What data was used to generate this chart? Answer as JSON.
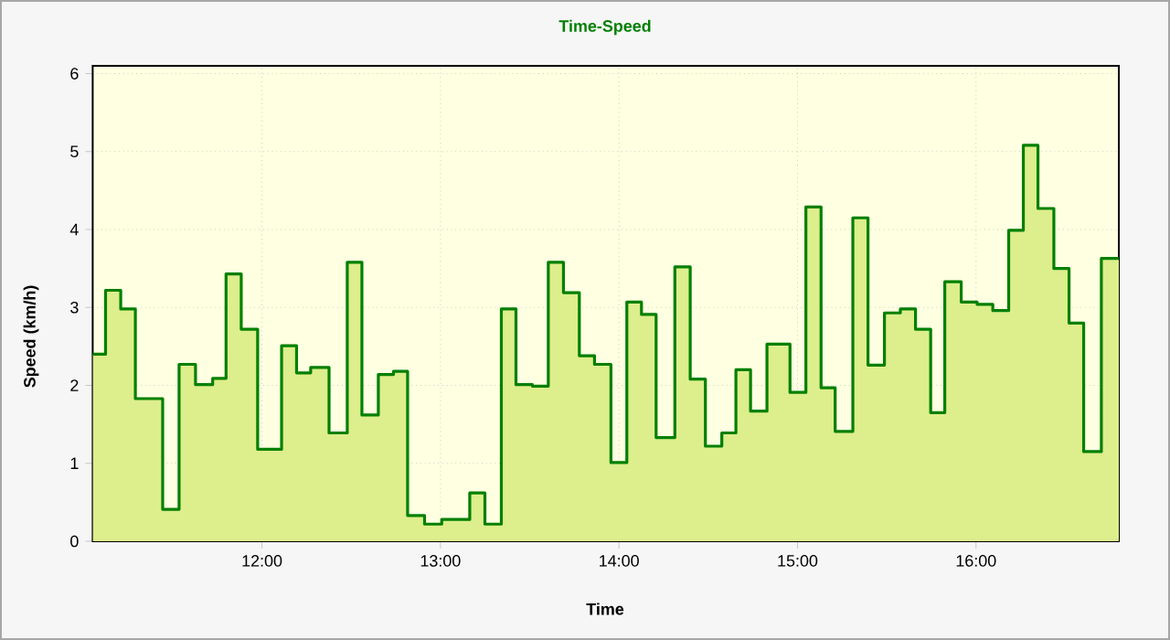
{
  "chart_data": {
    "type": "step",
    "title": "Time-Speed",
    "xlabel": "Time",
    "ylabel": "Speed (km/h)",
    "xlim": [
      11.052,
      16.8
    ],
    "ylim": [
      0,
      6.1
    ],
    "xticks": [
      {
        "value": 12,
        "label": "12:00"
      },
      {
        "value": 13,
        "label": "13:00"
      },
      {
        "value": 14,
        "label": "14:00"
      },
      {
        "value": 15,
        "label": "15:00"
      },
      {
        "value": 16,
        "label": "16:00"
      }
    ],
    "yticks": [
      0,
      1,
      2,
      3,
      4,
      5,
      6
    ],
    "grid": true,
    "legend": false,
    "marker": "none",
    "line_style": "solid",
    "series": [
      {
        "type": "area",
        "color": "#ddee8c",
        "x": [
          11.052,
          11.124,
          11.209,
          11.291,
          11.444,
          11.536,
          11.628,
          11.724,
          11.799,
          11.884,
          11.976,
          12.11,
          12.194,
          12.273,
          12.376,
          12.478,
          12.56,
          12.652,
          12.737,
          12.816,
          12.911,
          13.007,
          13.164,
          13.249,
          13.341,
          13.423,
          13.515,
          13.604,
          13.689,
          13.778,
          13.863,
          13.955,
          14.044,
          14.126,
          14.208,
          14.313,
          14.399,
          14.484,
          14.576,
          14.655,
          14.737,
          14.829,
          14.958,
          15.047,
          15.132,
          15.211,
          15.31,
          15.395,
          15.487,
          15.576,
          15.661,
          15.746,
          15.825,
          15.917,
          16.006,
          16.094,
          16.183,
          16.265,
          16.347,
          16.436,
          16.521,
          16.603,
          16.702,
          16.8
        ],
        "values": [
          2.4,
          3.22,
          2.98,
          1.83,
          0.41,
          2.27,
          2.01,
          2.09,
          3.43,
          2.72,
          1.18,
          2.51,
          2.16,
          2.23,
          1.39,
          3.58,
          1.62,
          2.14,
          2.18,
          0.33,
          0.22,
          0.28,
          0.62,
          0.22,
          2.98,
          2.01,
          1.99,
          3.58,
          3.19,
          2.38,
          2.27,
          1.01,
          3.07,
          2.91,
          1.33,
          3.52,
          2.08,
          1.22,
          1.39,
          2.2,
          1.67,
          2.53,
          1.91,
          4.29,
          1.97,
          1.41,
          4.15,
          2.26,
          2.93,
          2.98,
          2.72,
          1.65,
          3.33,
          3.07,
          3.04,
          2.96,
          3.99,
          5.08,
          4.27,
          3.5,
          2.8,
          1.15,
          3.63,
          3.63
        ]
      },
      {
        "color": "#008000",
        "x": [
          11.052,
          11.124,
          11.209,
          11.291,
          11.444,
          11.536,
          11.628,
          11.724,
          11.799,
          11.884,
          11.976,
          12.11,
          12.194,
          12.273,
          12.376,
          12.478,
          12.56,
          12.652,
          12.737,
          12.816,
          12.911,
          13.007,
          13.164,
          13.249,
          13.341,
          13.423,
          13.515,
          13.604,
          13.689,
          13.778,
          13.863,
          13.955,
          14.044,
          14.126,
          14.208,
          14.313,
          14.399,
          14.484,
          14.576,
          14.655,
          14.737,
          14.829,
          14.958,
          15.047,
          15.132,
          15.211,
          15.31,
          15.395,
          15.487,
          15.576,
          15.661,
          15.746,
          15.825,
          15.917,
          16.006,
          16.094,
          16.183,
          16.265,
          16.347,
          16.436,
          16.521,
          16.603,
          16.702,
          16.8
        ],
        "values": [
          2.4,
          3.22,
          2.98,
          1.83,
          0.41,
          2.27,
          2.01,
          2.09,
          3.43,
          2.72,
          1.18,
          2.51,
          2.16,
          2.23,
          1.39,
          3.58,
          1.62,
          2.14,
          2.18,
          0.33,
          0.22,
          0.28,
          0.62,
          0.22,
          2.98,
          2.01,
          1.99,
          3.58,
          3.19,
          2.38,
          2.27,
          1.01,
          3.07,
          2.91,
          1.33,
          3.52,
          2.08,
          1.22,
          1.39,
          2.2,
          1.67,
          2.53,
          1.91,
          4.29,
          1.97,
          1.41,
          4.15,
          2.26,
          2.93,
          2.98,
          2.72,
          1.65,
          3.33,
          3.07,
          3.04,
          2.96,
          3.99,
          5.08,
          4.27,
          3.5,
          2.8,
          1.15,
          3.63,
          3.63
        ]
      }
    ]
  }
}
